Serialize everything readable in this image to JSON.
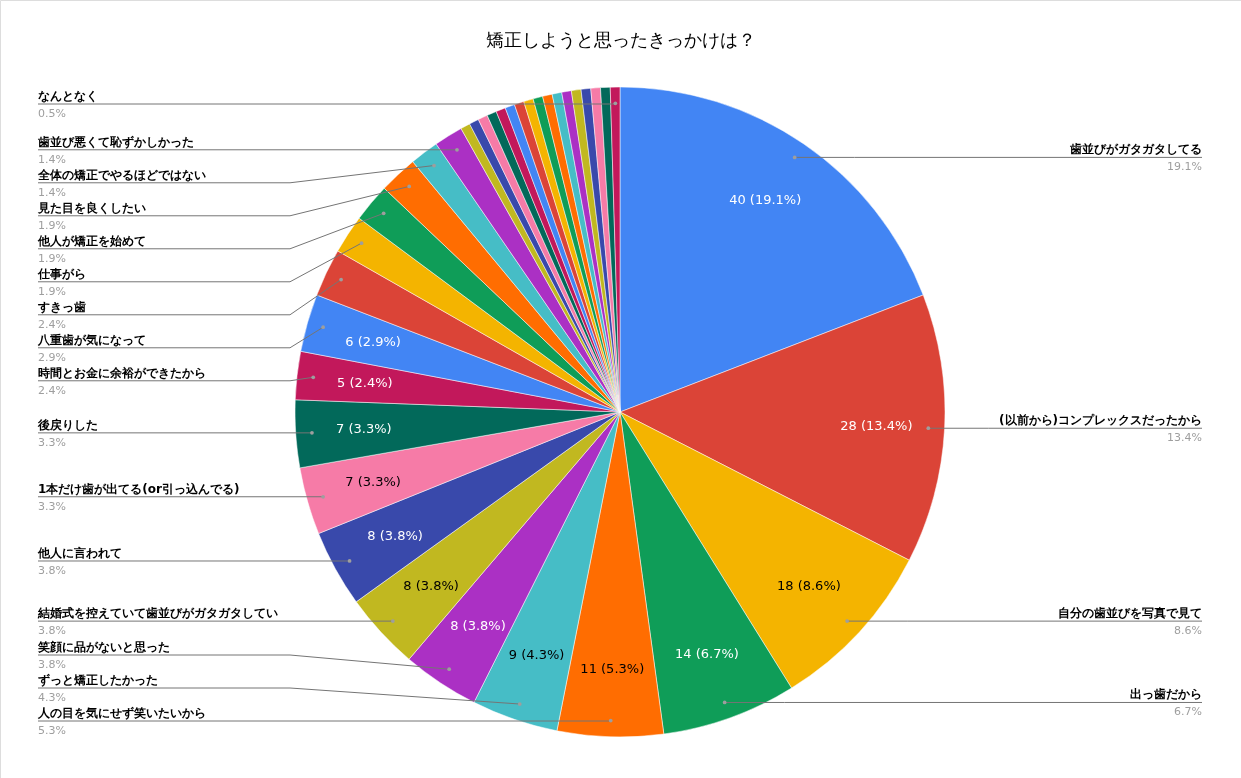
{
  "chart_data": {
    "type": "pie",
    "title": "矯正しようと思ったきっかけは？",
    "categories": [
      "歯並びがガタガタしてる",
      "(以前から)コンプレックスだったから",
      "自分の歯並びを写真で見て",
      "出っ歯だから",
      "人の目を気にせず笑いたいから",
      "ずっと矯正したかった",
      "笑顔に品がないと思った",
      "結婚式を控えていて歯並びがガタガタしてい",
      "他人に言われて",
      "1本だけ歯が出てる(or引っ込んでる)",
      "後戻りした",
      "時間とお金に余裕ができたから",
      "八重歯が気になって",
      "すきっ歯",
      "仕事がら",
      "他人が矯正を始めて",
      "見た目を良くしたい",
      "全体の矯正でやるほどではない",
      "歯並び悪くて恥ずかしかった",
      null,
      null,
      null,
      null,
      null,
      null,
      null,
      null,
      null,
      null,
      null,
      null,
      null,
      null,
      null,
      null,
      "なんとなく"
    ],
    "values": [
      40,
      28,
      18,
      14,
      11,
      9,
      8,
      8,
      8,
      7,
      7,
      5,
      6,
      5,
      4,
      4,
      4,
      3,
      3,
      1,
      1,
      1,
      1,
      1,
      1,
      1,
      1,
      1,
      1,
      1,
      1,
      1,
      1,
      1,
      1,
      1
    ],
    "colors": [
      "#4285f4",
      "#db4437",
      "#f4b400",
      "#0f9d58",
      "#ff6d01",
      "#46bdc6",
      "#ab30c4",
      "#c1b820",
      "#3949ab",
      "#f67ba7",
      "#02695a",
      "#c2185b",
      "#4285f4",
      "#db4437",
      "#f4b400",
      "#0f9d58",
      "#ff6d01",
      "#46bdc6",
      "#ab30c4",
      "#c1b820",
      "#3949ab",
      "#f67ba7",
      "#02695a",
      "#c2185b",
      "#4285f4",
      "#db4437",
      "#f4b400",
      "#0f9d58",
      "#ff6d01",
      "#46bdc6",
      "#ab30c4",
      "#c1b820",
      "#3949ab",
      "#f67ba7",
      "#02695a",
      "#c2185b"
    ],
    "annotations": [
      "19.1%",
      "13.4%",
      "8.6%",
      "6.7%",
      "5.3%",
      "4.3%",
      "3.8%",
      "3.8%",
      "3.8%",
      "3.3%",
      "3.3%",
      "2.4%",
      "2.9%",
      "2.4%",
      "1.9%",
      "1.9%",
      "1.9%",
      "1.4%",
      "1.4%",
      "0.5%"
    ],
    "value_labels": [
      "40 (19.1%)",
      "28 (13.4%)",
      "18 (8.6%)",
      "14 (6.7%)",
      "11 (5.3%)",
      "9 (4.3%)",
      "8 (3.8%)",
      "8 (3.8%)",
      "8 (3.8%)",
      "7 (3.3%)",
      "7 (3.3%)",
      "5 (2.4%)",
      "6 (2.9%)",
      null,
      null,
      null,
      null,
      null,
      null,
      null,
      null,
      null,
      null,
      null,
      null,
      null,
      null,
      null,
      null,
      null,
      null,
      null,
      null,
      null,
      null,
      null
    ]
  }
}
